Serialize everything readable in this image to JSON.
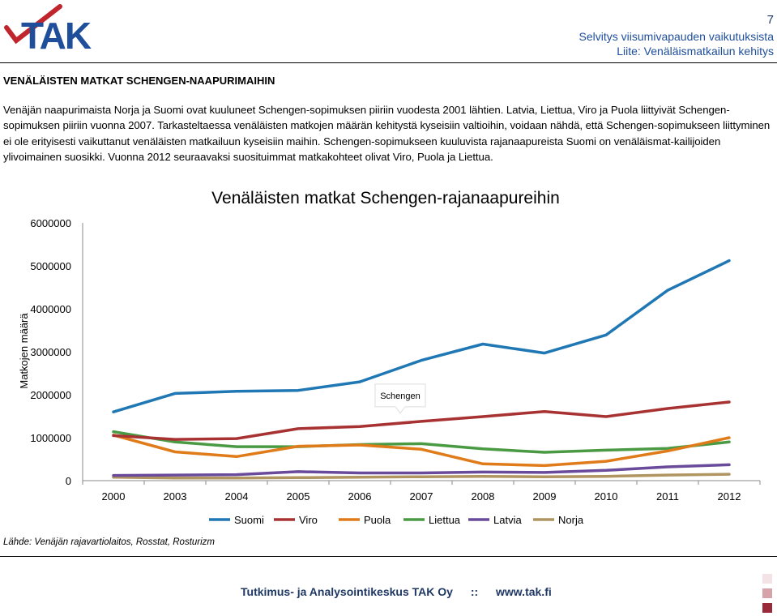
{
  "header": {
    "logo_text": "TAK",
    "page_number": "7",
    "subtitle_line1": "Selvitys viisumivapauden vaikutuksista",
    "subtitle_line2": "Liite: Venäläismatkailun kehitys",
    "colors": {
      "logo_blue": "#1f4e9b",
      "logo_red": "#c0242c"
    }
  },
  "section": {
    "title": "VENÄLÄISTEN MATKAT SCHENGEN-NAAPURIMAIHIN",
    "paragraph": "Venäjän naapurimaista Norja ja Suomi ovat kuuluneet Schengen-sopimuksen piiriin vuodesta 2001 lähtien. Latvia, Liettua, Viro ja Puola liittyivät Schengen-sopimuksen piiriin vuonna 2007. Tarkasteltaessa venäläisten matkojen määrän kehitystä kyseisiin valtioihin, voidaan nähdä, että Schengen-sopimukseen liittyminen ei ole erityisesti vaikuttanut venäläisten matkailuun kyseisiin maihin. Schengen-sopimukseen kuuluvista rajanaapureista Suomi on venäläismat-kailijoiden ylivoimainen suosikki. Vuonna 2012 seuraavaksi suosituimmat matkakohteet olivat Viro, Puola ja Liettua."
  },
  "chart_data": {
    "type": "line",
    "title": "Venäläisten matkat Schengen-rajanaapureihin",
    "xlabel": "",
    "ylabel": "Matkojen määrä",
    "ylim": [
      0,
      6000000
    ],
    "yticks": [
      0,
      1000000,
      2000000,
      3000000,
      4000000,
      5000000,
      6000000
    ],
    "categories": [
      "2000",
      "2003",
      "2004",
      "2005",
      "2006",
      "2007",
      "2008",
      "2009",
      "2010",
      "2011",
      "2012"
    ],
    "series": [
      {
        "name": "Suomi",
        "color": "#1f77b4",
        "values": [
          1600000,
          2030000,
          2080000,
          2100000,
          2300000,
          2800000,
          3180000,
          2970000,
          3390000,
          4430000,
          5120000
        ]
      },
      {
        "name": "Viro",
        "color": "#a83232",
        "values": [
          1050000,
          960000,
          980000,
          1210000,
          1260000,
          1380000,
          1490000,
          1610000,
          1490000,
          1680000,
          1830000
        ]
      },
      {
        "name": "Puola",
        "color": "#e07b1a",
        "values": [
          1060000,
          670000,
          560000,
          800000,
          830000,
          730000,
          390000,
          350000,
          450000,
          690000,
          1000000
        ]
      },
      {
        "name": "Liettua",
        "color": "#4a9a44",
        "values": [
          1140000,
          900000,
          790000,
          790000,
          840000,
          860000,
          740000,
          660000,
          710000,
          750000,
          900000
        ]
      },
      {
        "name": "Latvia",
        "color": "#6a4a9a",
        "values": [
          120000,
          130000,
          140000,
          210000,
          180000,
          180000,
          200000,
          190000,
          240000,
          320000,
          370000
        ]
      },
      {
        "name": "Norja",
        "color": "#b09560",
        "values": [
          80000,
          60000,
          60000,
          70000,
          80000,
          90000,
          100000,
          90000,
          100000,
          130000,
          150000
        ]
      }
    ],
    "annotation": {
      "text": "Schengen",
      "x": "2007",
      "y": 1380000
    },
    "legend_position": "bottom",
    "grid": false
  },
  "source_text": "Lähde: Venäjän rajavartiolaitos, Rosstat, Rosturizm",
  "footer": {
    "org": "Tutkimus- ja Analysointikeskus TAK Oy",
    "separator": "::",
    "url": "www.tak.fi"
  }
}
